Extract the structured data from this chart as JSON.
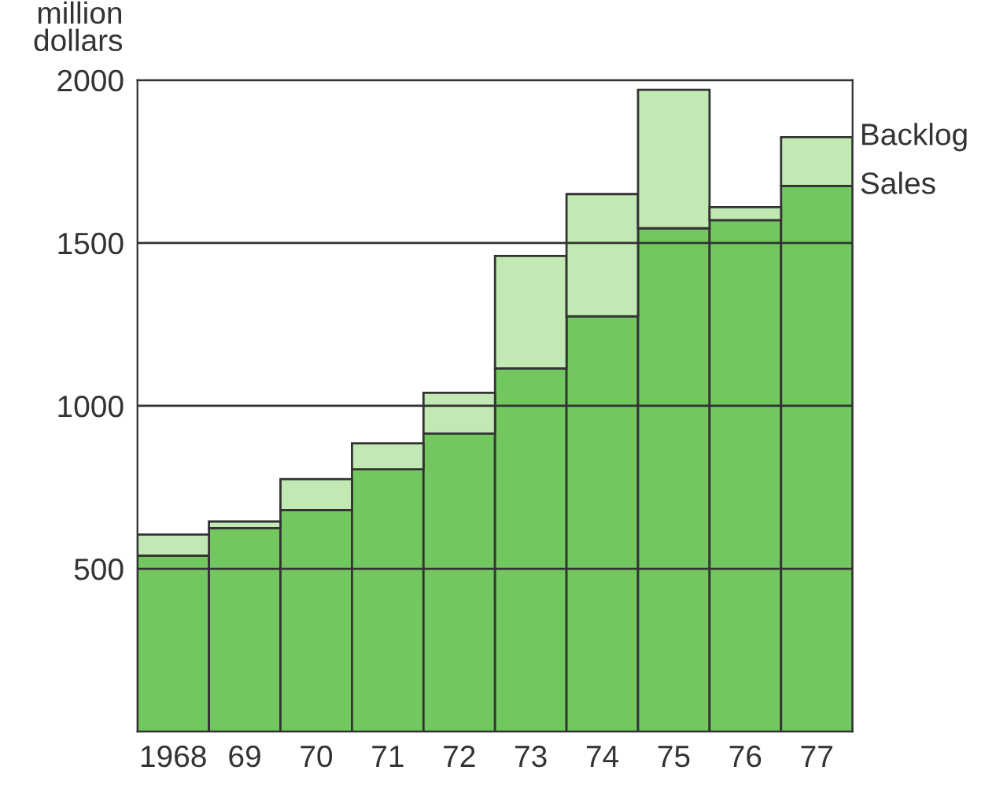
{
  "chart_data": {
    "type": "bar",
    "stacked": true,
    "ylabel": "million dollars",
    "categories": [
      "1968",
      "69",
      "70",
      "71",
      "72",
      "73",
      "74",
      "75",
      "76",
      "77"
    ],
    "series": [
      {
        "name": "Sales",
        "color": "#72c85e",
        "values": [
          540,
          625,
          680,
          805,
          915,
          1115,
          1275,
          1545,
          1570,
          1675
        ]
      },
      {
        "name": "Backlog",
        "color": "#c2e8b4",
        "values": [
          65,
          20,
          95,
          80,
          125,
          345,
          375,
          425,
          40,
          150
        ]
      }
    ],
    "ylim": [
      0,
      2000
    ],
    "yticks": [
      500,
      1000,
      1500,
      2000
    ],
    "grid": "y",
    "legend": "right"
  }
}
